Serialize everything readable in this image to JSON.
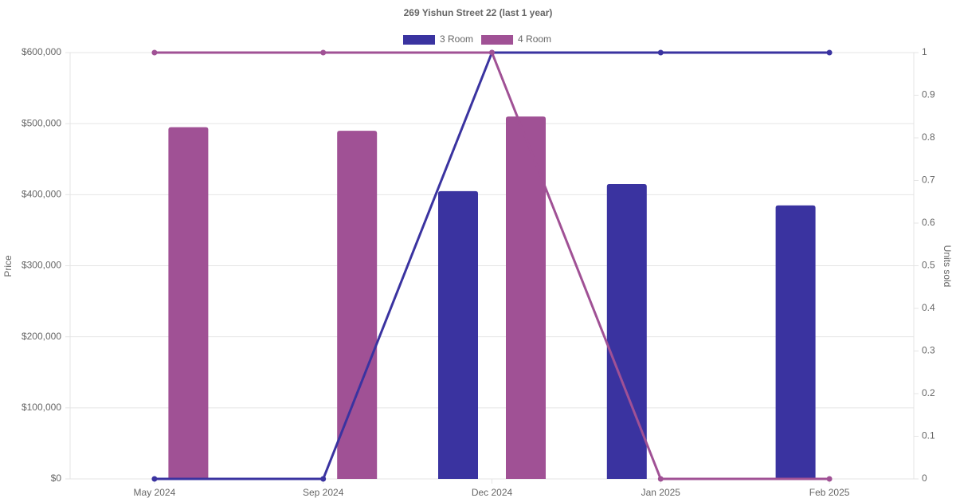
{
  "chart_data": {
    "type": "bar-line",
    "title": "269 Yishun Street 22 (last 1 year)",
    "categories": [
      "May 2024",
      "Sep 2024",
      "Dec 2024",
      "Jan 2025",
      "Feb 2025"
    ],
    "series": [
      {
        "name": "3 Room",
        "color": "#3a33a0",
        "values": [
          null,
          null,
          405000,
          415000,
          385000
        ],
        "units_sold": [
          0,
          0,
          1,
          1,
          1
        ]
      },
      {
        "name": "4 Room",
        "color": "#a05195",
        "values": [
          495000,
          490000,
          510000,
          null,
          null
        ],
        "units_sold": [
          1,
          1,
          1,
          0,
          0
        ]
      }
    ],
    "y_label": "Price",
    "y2_label": "Units sold",
    "ylim": [
      0,
      600000
    ],
    "yticks": [
      {
        "value": 0,
        "label": "$0"
      },
      {
        "value": 100000,
        "label": "$100,000"
      },
      {
        "value": 200000,
        "label": "$200,000"
      },
      {
        "value": 300000,
        "label": "$300,000"
      },
      {
        "value": 400000,
        "label": "$400,000"
      },
      {
        "value": 500000,
        "label": "$500,000"
      },
      {
        "value": 600000,
        "label": "$600,000"
      }
    ],
    "y2lim": [
      0,
      1
    ],
    "y2ticks": [
      0,
      0.1,
      0.2,
      0.3,
      0.4,
      0.5,
      0.6,
      0.7,
      0.8,
      0.9,
      1
    ],
    "grid": true
  }
}
